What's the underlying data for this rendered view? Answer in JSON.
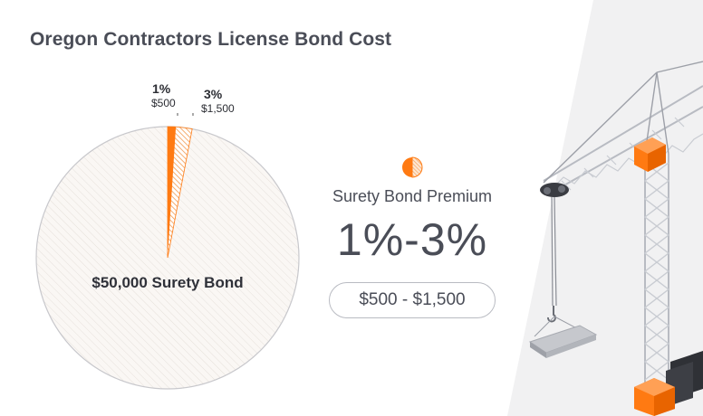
{
  "title": "Oregon Contractors License Bond Cost",
  "pie": {
    "center_label": "$50,000 Surety Bond",
    "low_slice": {
      "percent_label": "1%",
      "amount_label": "$500",
      "fraction": 0.01
    },
    "high_slice": {
      "percent_label": "3%",
      "amount_label": "$1,500",
      "fraction": 0.03
    }
  },
  "premium": {
    "label": "Surety Bond Premium",
    "range": "1%-3%",
    "amount_range": "$500 - $1,500"
  },
  "colors": {
    "accent_orange": "#ff7a12",
    "light_orange": "#f8b27a",
    "text_dark": "#4a4d57",
    "pie_background": "#f7f3ef",
    "crane_steel": "#cfd1d6",
    "backdrop_gray": "#f1f1f2"
  },
  "illustration": {
    "icon": "tower-crane-illustration"
  }
}
